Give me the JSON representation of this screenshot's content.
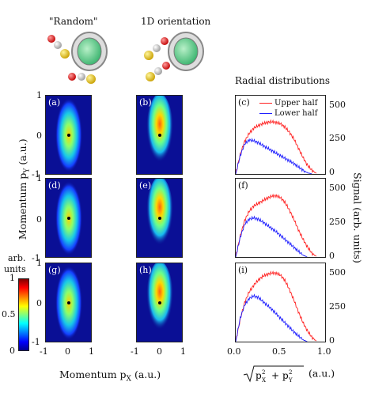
{
  "columns": {
    "random_title": "\"Random\"",
    "oriented_title": "1D orientation",
    "radial_title": "Radial distributions"
  },
  "panel_labels": [
    "(a)",
    "(b)",
    "(c)",
    "(d)",
    "(e)",
    "(f)",
    "(g)",
    "(h)",
    "(i)"
  ],
  "image_axes": {
    "y_ticks": [
      "1",
      "0",
      "-1"
    ],
    "x_ticks": [
      "-1",
      "0",
      "1"
    ],
    "x_title": "Momentum p",
    "x_sub": "X",
    "x_unit": "(a.u.)",
    "y_title": "Momentum p",
    "y_sub": "Y",
    "y_unit": "(a.u.)"
  },
  "colorbar": {
    "label_top": "arb.",
    "label_bottom": "units",
    "ticks": [
      "1",
      "0.5",
      "0"
    ]
  },
  "radial_axes": {
    "x_ticks": [
      "0.0",
      "0.5",
      "1.0"
    ],
    "y_ticks": [
      "500",
      "250",
      "0"
    ],
    "x_title_unit": "(a.u.)",
    "y_title": "Signal  (arb. units)"
  },
  "legend": {
    "upper": "Upper half",
    "lower": "Lower half",
    "upper_color": "#ff2020",
    "lower_color": "#2020ff"
  },
  "chart_data": [
    {
      "type": "line",
      "panel": "(c)",
      "xlim": [
        0,
        1.0
      ],
      "ylim": [
        0,
        600
      ],
      "series": [
        {
          "name": "Upper half",
          "x": [
            0.0,
            0.05,
            0.1,
            0.15,
            0.2,
            0.25,
            0.3,
            0.35,
            0.4,
            0.45,
            0.5,
            0.55,
            0.6,
            0.65,
            0.7,
            0.75,
            0.8,
            0.85,
            0.9
          ],
          "values": [
            0,
            150,
            250,
            310,
            350,
            370,
            385,
            395,
            400,
            395,
            385,
            360,
            320,
            270,
            200,
            130,
            70,
            30,
            5
          ]
        },
        {
          "name": "Lower half",
          "x": [
            0.0,
            0.05,
            0.1,
            0.15,
            0.2,
            0.25,
            0.3,
            0.35,
            0.4,
            0.45,
            0.5,
            0.55,
            0.6,
            0.65,
            0.7,
            0.75,
            0.8,
            0.85
          ],
          "values": [
            0,
            140,
            230,
            260,
            255,
            240,
            220,
            200,
            180,
            160,
            140,
            120,
            100,
            80,
            55,
            30,
            10,
            0
          ]
        }
      ]
    },
    {
      "type": "line",
      "panel": "(f)",
      "xlim": [
        0,
        1.0
      ],
      "ylim": [
        0,
        600
      ],
      "series": [
        {
          "name": "Upper half",
          "x": [
            0.0,
            0.05,
            0.1,
            0.15,
            0.2,
            0.25,
            0.3,
            0.35,
            0.4,
            0.45,
            0.5,
            0.55,
            0.6,
            0.65,
            0.7,
            0.75,
            0.8,
            0.85,
            0.9
          ],
          "values": [
            0,
            160,
            280,
            350,
            390,
            410,
            430,
            450,
            465,
            470,
            455,
            420,
            360,
            290,
            210,
            140,
            80,
            30,
            5
          ]
        },
        {
          "name": "Lower half",
          "x": [
            0.0,
            0.05,
            0.1,
            0.15,
            0.2,
            0.25,
            0.3,
            0.35,
            0.4,
            0.45,
            0.5,
            0.55,
            0.6,
            0.65,
            0.7,
            0.75,
            0.8
          ],
          "values": [
            0,
            150,
            250,
            290,
            300,
            290,
            270,
            245,
            220,
            195,
            165,
            135,
            105,
            75,
            45,
            15,
            0
          ]
        }
      ]
    },
    {
      "type": "line",
      "panel": "(i)",
      "xlim": [
        0,
        1.0
      ],
      "ylim": [
        0,
        600
      ],
      "series": [
        {
          "name": "Upper half",
          "x": [
            0.0,
            0.05,
            0.1,
            0.15,
            0.2,
            0.25,
            0.3,
            0.35,
            0.4,
            0.45,
            0.5,
            0.55,
            0.6,
            0.65,
            0.7,
            0.75,
            0.8,
            0.85,
            0.9
          ],
          "values": [
            0,
            170,
            300,
            380,
            430,
            470,
            500,
            515,
            525,
            525,
            510,
            470,
            400,
            320,
            230,
            150,
            85,
            35,
            5
          ]
        },
        {
          "name": "Lower half",
          "x": [
            0.0,
            0.05,
            0.1,
            0.15,
            0.2,
            0.25,
            0.3,
            0.35,
            0.4,
            0.45,
            0.5,
            0.55,
            0.6,
            0.65,
            0.7,
            0.75,
            0.8
          ],
          "values": [
            0,
            180,
            280,
            330,
            350,
            340,
            310,
            280,
            250,
            215,
            180,
            145,
            110,
            75,
            45,
            15,
            0
          ]
        }
      ]
    }
  ]
}
